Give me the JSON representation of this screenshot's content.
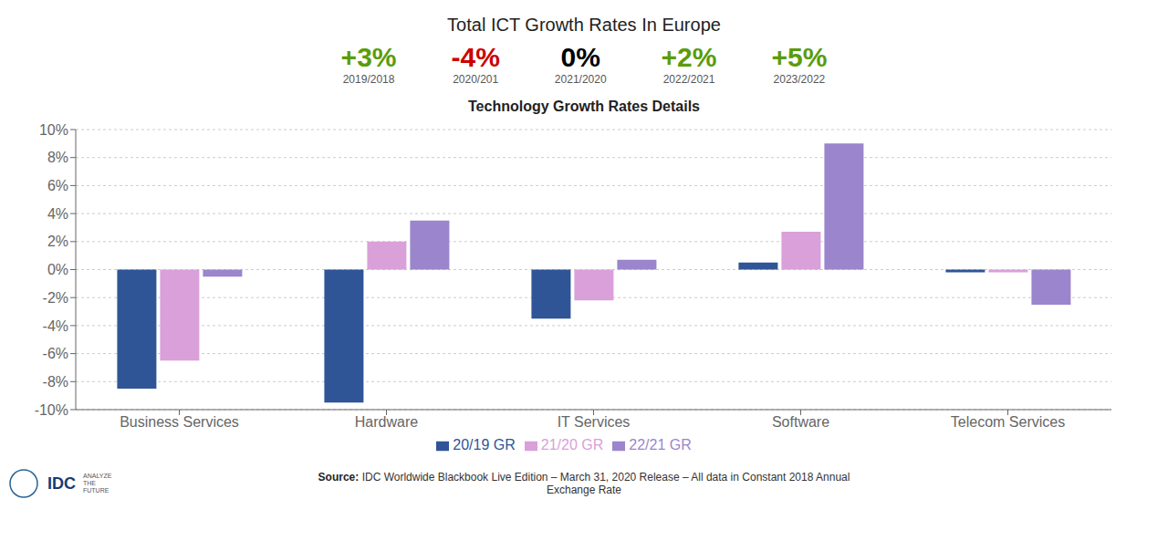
{
  "chart_data": {
    "type": "bar",
    "title": "Total ICT Growth Rates In Europe",
    "subtitle": "Technology Growth Rates Details",
    "growth_rates": {
      "values": [
        3,
        -4,
        0,
        2,
        5
      ],
      "value_labels": [
        "+3%",
        "-4%",
        "0%",
        "+2%",
        "+5%"
      ],
      "categories": [
        "2019/2018",
        "2020/201",
        "2021/2020",
        "2022/2021",
        "2023/2022"
      ],
      "colors": [
        "#5a9c0a",
        "#cc0000",
        "#000000",
        "#5a9c0a",
        "#5a9c0a"
      ]
    },
    "categories": [
      "Business Services",
      "Hardware",
      "IT Services",
      "Software",
      "Telecom Services"
    ],
    "series": [
      {
        "name": "20/19 GR",
        "color": "#2f5597",
        "values": [
          -8.5,
          -9.5,
          -3.5,
          0.5,
          -0.2
        ]
      },
      {
        "name": "21/20 GR",
        "color": "#d9a0d9",
        "values": [
          -6.5,
          2.0,
          -2.2,
          2.7,
          -0.2
        ]
      },
      {
        "name": "22/21 GR",
        "color": "#9b85cc",
        "values": [
          -0.5,
          3.5,
          0.7,
          9.0,
          -2.5
        ]
      }
    ],
    "ylim": [
      -10,
      10
    ],
    "yticks": [
      {
        "value": -10,
        "label": "-10%"
      },
      {
        "value": -8,
        "label": "-8%"
      },
      {
        "value": -6,
        "label": "-6%"
      },
      {
        "value": -4,
        "label": "-4%"
      },
      {
        "value": -2,
        "label": "-2%"
      },
      {
        "value": 0,
        "label": "0%"
      },
      {
        "value": 2,
        "label": "2%"
      },
      {
        "value": 4,
        "label": "4%"
      },
      {
        "value": 6,
        "label": "6%"
      },
      {
        "value": 8,
        "label": "8%"
      },
      {
        "value": 10,
        "label": "10%"
      }
    ],
    "grid": true,
    "legend": "bottom",
    "footnote": [
      "Source:",
      "IDC Worldwide Blackbook Live Edition – March 31, 2020 Release – All data in Constant 2018 Annual",
      "Exchange Rate"
    ],
    "logo": [
      "IDC",
      "ANALYZE",
      "THE",
      "FUTURE"
    ]
  }
}
